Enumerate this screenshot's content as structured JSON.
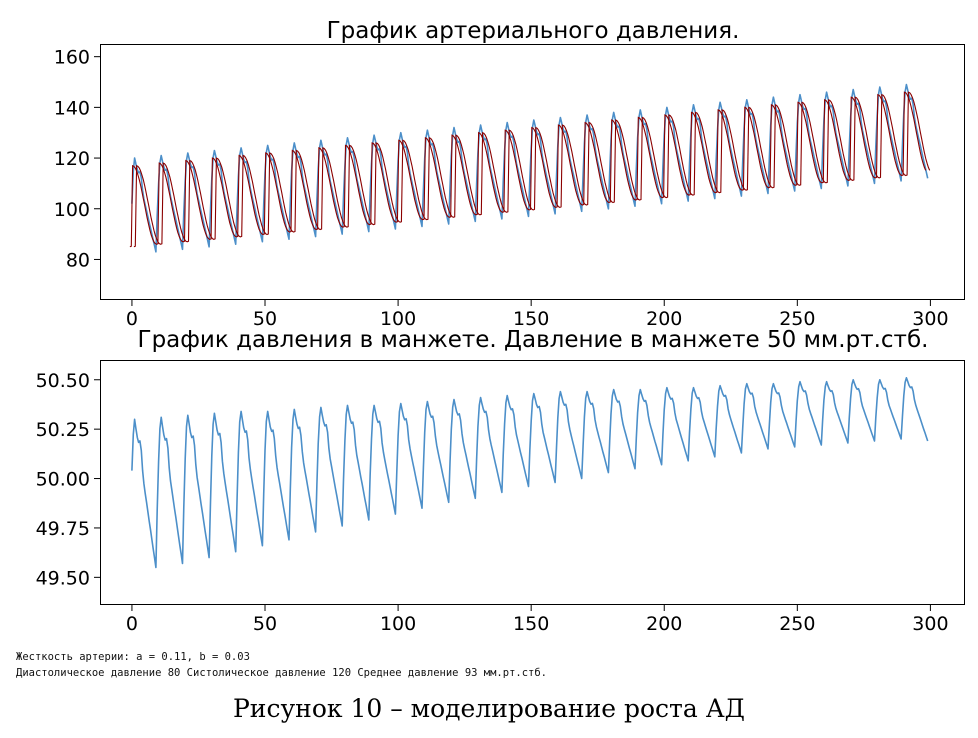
{
  "chart_data": [
    {
      "type": "line",
      "title": "График артериального давления.",
      "xlabel": "",
      "ylabel": "",
      "xlim": [
        -12,
        313
      ],
      "ylim": [
        64,
        165
      ],
      "xticks": [
        0,
        50,
        100,
        150,
        200,
        250,
        300
      ],
      "yticks": [
        80,
        100,
        120,
        140,
        160
      ],
      "grid": false,
      "period": 10,
      "series": [
        {
          "color": "#4c8fc9",
          "style": "pulse-waveform",
          "x_range": [
            0,
            299
          ],
          "peaks": [
            [
              1,
              120
            ],
            [
              11,
              121
            ],
            [
              21,
              122
            ],
            [
              31,
              123
            ],
            [
              41,
              124
            ],
            [
              51,
              125
            ],
            [
              61,
              126
            ],
            [
              71,
              127
            ],
            [
              81,
              128
            ],
            [
              91,
              129
            ],
            [
              101,
              130
            ],
            [
              111,
              131
            ],
            [
              121,
              132
            ],
            [
              131,
              133
            ],
            [
              141,
              134
            ],
            [
              151,
              135
            ],
            [
              161,
              136
            ],
            [
              171,
              137
            ],
            [
              181,
              138
            ],
            [
              191,
              139
            ],
            [
              201,
              140
            ],
            [
              211,
              141
            ],
            [
              221,
              142
            ],
            [
              231,
              143
            ],
            [
              241,
              144
            ],
            [
              251,
              145
            ],
            [
              261,
              146
            ],
            [
              271,
              147
            ],
            [
              281,
              148
            ],
            [
              291,
              149
            ]
          ],
          "troughs": [
            [
              9,
              83
            ],
            [
              19,
              84
            ],
            [
              29,
              85
            ],
            [
              39,
              86
            ],
            [
              49,
              87
            ],
            [
              59,
              88
            ],
            [
              69,
              89
            ],
            [
              79,
              90
            ],
            [
              89,
              91
            ],
            [
              99,
              92
            ],
            [
              109,
              93
            ],
            [
              119,
              94
            ],
            [
              129,
              95
            ],
            [
              139,
              96
            ],
            [
              149,
              97
            ],
            [
              159,
              98
            ],
            [
              169,
              99
            ],
            [
              179,
              100
            ],
            [
              189,
              101
            ],
            [
              199,
              102
            ],
            [
              209,
              103
            ],
            [
              219,
              104
            ],
            [
              229,
              105
            ],
            [
              239,
              106
            ],
            [
              249,
              107
            ],
            [
              259,
              108
            ],
            [
              269,
              109
            ],
            [
              279,
              110
            ],
            [
              289,
              111
            ]
          ],
          "start": [
            0,
            102
          ],
          "end": [
            299,
            112
          ]
        },
        {
          "color": "#8b0000",
          "style": "model-fit-double",
          "x_range": [
            0,
            299
          ],
          "cycle_max": [
            [
              1,
              117
            ],
            [
              11,
              118
            ],
            [
              21,
              119
            ],
            [
              31,
              120
            ],
            [
              41,
              121
            ],
            [
              51,
              122
            ],
            [
              61,
              123
            ],
            [
              71,
              124
            ],
            [
              81,
              125
            ],
            [
              91,
              126
            ],
            [
              101,
              127
            ],
            [
              111,
              128
            ],
            [
              121,
              129
            ],
            [
              131,
              130
            ],
            [
              141,
              131
            ],
            [
              151,
              132
            ],
            [
              161,
              133
            ],
            [
              171,
              134
            ],
            [
              181,
              135
            ],
            [
              191,
              136
            ],
            [
              201,
              137
            ],
            [
              211,
              138
            ],
            [
              221,
              139
            ],
            [
              231,
              140
            ],
            [
              241,
              141
            ],
            [
              251,
              142
            ],
            [
              261,
              143
            ],
            [
              271,
              144
            ],
            [
              281,
              145
            ],
            [
              291,
              146
            ]
          ],
          "cycle_min": [
            85,
            114
          ]
        }
      ]
    },
    {
      "type": "line",
      "title": "График давления в манжете. Давление в манжете 50 мм.рт.стб.",
      "xlabel": "",
      "ylabel": "",
      "xlim": [
        -12,
        313
      ],
      "ylim": [
        49.36,
        50.6
      ],
      "xticks": [
        0,
        50,
        100,
        150,
        200,
        250,
        300
      ],
      "yticks": [
        49.5,
        49.75,
        50.0,
        50.25,
        50.5
      ],
      "ytick_labels": [
        "49.50",
        "49.75",
        "50.00",
        "50.25",
        "50.50"
      ],
      "grid": false,
      "period": 10,
      "series": [
        {
          "color": "#4c8fc9",
          "style": "pulse-waveform",
          "x_range": [
            0,
            299
          ],
          "peaks": [
            [
              1,
              50.3
            ],
            [
              11,
              50.31
            ],
            [
              21,
              50.32
            ],
            [
              31,
              50.33
            ],
            [
              41,
              50.34
            ],
            [
              51,
              50.34
            ],
            [
              61,
              50.35
            ],
            [
              71,
              50.36
            ],
            [
              81,
              50.37
            ],
            [
              91,
              50.37
            ],
            [
              101,
              50.38
            ],
            [
              111,
              50.39
            ],
            [
              121,
              50.4
            ],
            [
              131,
              50.41
            ],
            [
              141,
              50.42
            ],
            [
              151,
              50.43
            ],
            [
              161,
              50.44
            ],
            [
              171,
              50.44
            ],
            [
              181,
              50.45
            ],
            [
              191,
              50.45
            ],
            [
              201,
              50.46
            ],
            [
              211,
              50.46
            ],
            [
              221,
              50.47
            ],
            [
              231,
              50.48
            ],
            [
              241,
              50.48
            ],
            [
              251,
              50.49
            ],
            [
              261,
              50.49
            ],
            [
              271,
              50.5
            ],
            [
              281,
              50.5
            ],
            [
              291,
              50.51
            ]
          ],
          "troughs": [
            [
              9,
              49.55
            ],
            [
              19,
              49.57
            ],
            [
              29,
              49.6
            ],
            [
              39,
              49.63
            ],
            [
              49,
              49.66
            ],
            [
              59,
              49.69
            ],
            [
              69,
              49.73
            ],
            [
              79,
              49.76
            ],
            [
              89,
              49.79
            ],
            [
              99,
              49.82
            ],
            [
              109,
              49.85
            ],
            [
              119,
              49.88
            ],
            [
              129,
              49.9
            ],
            [
              139,
              49.93
            ],
            [
              149,
              49.96
            ],
            [
              159,
              49.98
            ],
            [
              169,
              50.0
            ],
            [
              179,
              50.03
            ],
            [
              189,
              50.05
            ],
            [
              199,
              50.07
            ],
            [
              209,
              50.09
            ],
            [
              219,
              50.11
            ],
            [
              229,
              50.13
            ],
            [
              239,
              50.15
            ],
            [
              249,
              50.16
            ],
            [
              259,
              50.17
            ],
            [
              269,
              50.18
            ],
            [
              279,
              50.19
            ],
            [
              289,
              50.2
            ]
          ],
          "start": [
            0,
            50.04
          ],
          "end": [
            299,
            50.19
          ]
        }
      ]
    }
  ],
  "info": {
    "line1": "Жесткость артерии: a = 0.11, b = 0.03",
    "line2": "Диастолическое давление 80 Систолическое давление 120 Среднее давление 93 мм.рт.стб."
  },
  "caption": "Рисунок 10 – моделирование роста АД"
}
